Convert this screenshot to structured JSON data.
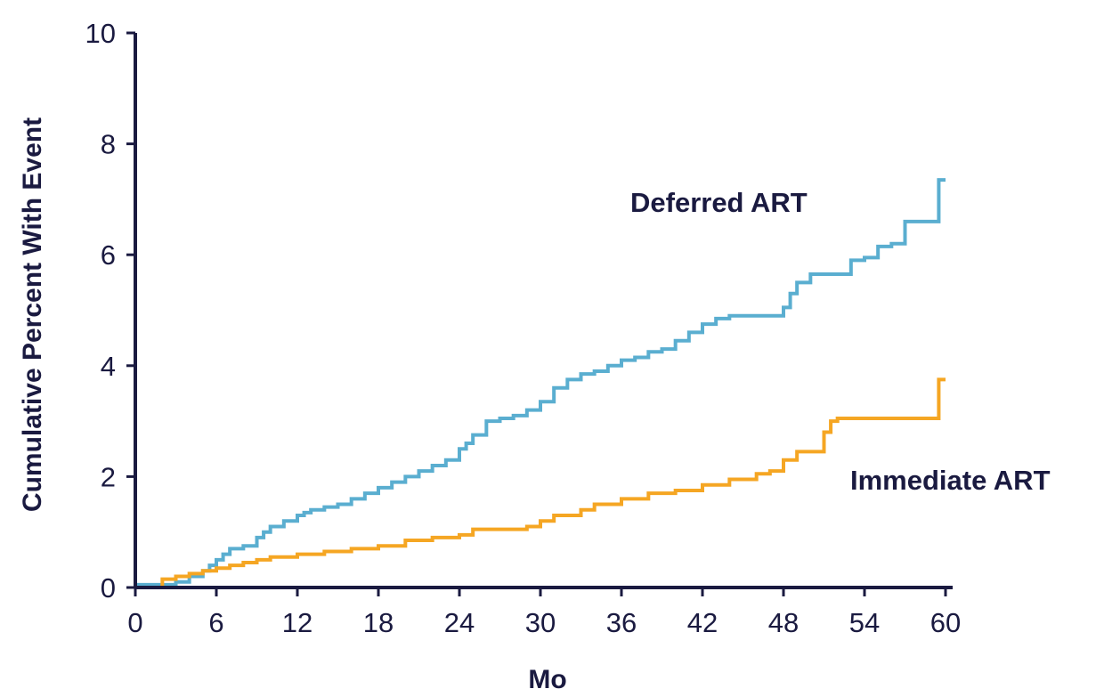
{
  "chart_data": {
    "type": "line",
    "xlabel": "Mo",
    "ylabel": "Cumulative Percent With Event",
    "xlim": [
      0,
      60
    ],
    "ylim": [
      0,
      10
    ],
    "xticks": [
      "0",
      "6",
      "12",
      "18",
      "24",
      "30",
      "36",
      "42",
      "48",
      "54",
      "60"
    ],
    "yticks": [
      "0",
      "2",
      "4",
      "6",
      "8",
      "10"
    ],
    "grid": false,
    "series": [
      {
        "name": "Deferred ART",
        "color": "#5aaed0",
        "step": true,
        "x": [
          0,
          2,
          3,
          4,
          5,
          5.5,
          6,
          6.5,
          7,
          8,
          9,
          9.5,
          10,
          11,
          12,
          12.5,
          13,
          14,
          15,
          16,
          17,
          18,
          19,
          20,
          21,
          22,
          23,
          24,
          24.5,
          25,
          26,
          27,
          28,
          29,
          30,
          31,
          32,
          33,
          34,
          35,
          36,
          37,
          38,
          39,
          40,
          41,
          42,
          43,
          44,
          45,
          46,
          47,
          48,
          48.5,
          49,
          50,
          51,
          52,
          53,
          54,
          55,
          56,
          57,
          58,
          59,
          59.5,
          60
        ],
        "y": [
          0.05,
          0.05,
          0.1,
          0.2,
          0.3,
          0.4,
          0.5,
          0.6,
          0.7,
          0.75,
          0.9,
          1.0,
          1.1,
          1.2,
          1.3,
          1.35,
          1.4,
          1.45,
          1.5,
          1.6,
          1.7,
          1.8,
          1.9,
          2.0,
          2.1,
          2.2,
          2.3,
          2.5,
          2.6,
          2.75,
          3.0,
          3.05,
          3.1,
          3.2,
          3.35,
          3.6,
          3.75,
          3.85,
          3.9,
          4.0,
          4.1,
          4.15,
          4.25,
          4.3,
          4.45,
          4.6,
          4.75,
          4.85,
          4.9,
          4.9,
          4.9,
          4.9,
          5.05,
          5.3,
          5.5,
          5.65,
          5.65,
          5.65,
          5.9,
          5.95,
          6.15,
          6.2,
          6.6,
          6.6,
          6.6,
          7.35,
          7.35
        ]
      },
      {
        "name": "Immediate ART",
        "color": "#f5a623",
        "step": true,
        "x": [
          0,
          2,
          3,
          4,
          5,
          6,
          7,
          8,
          9,
          10,
          12,
          14,
          16,
          18,
          20,
          22,
          24,
          25,
          27,
          29,
          30,
          31,
          33,
          34,
          36,
          38,
          40,
          42,
          44,
          46,
          47,
          48,
          49,
          50,
          51,
          51.5,
          52,
          54,
          56,
          58,
          59.5,
          60
        ],
        "y": [
          0,
          0.15,
          0.2,
          0.25,
          0.3,
          0.35,
          0.4,
          0.45,
          0.5,
          0.55,
          0.6,
          0.65,
          0.7,
          0.75,
          0.85,
          0.9,
          0.95,
          1.05,
          1.05,
          1.1,
          1.2,
          1.3,
          1.4,
          1.5,
          1.6,
          1.7,
          1.75,
          1.85,
          1.95,
          2.05,
          2.1,
          2.3,
          2.45,
          2.45,
          2.8,
          3.0,
          3.05,
          3.05,
          3.05,
          3.05,
          3.75,
          3.75
        ]
      }
    ]
  }
}
